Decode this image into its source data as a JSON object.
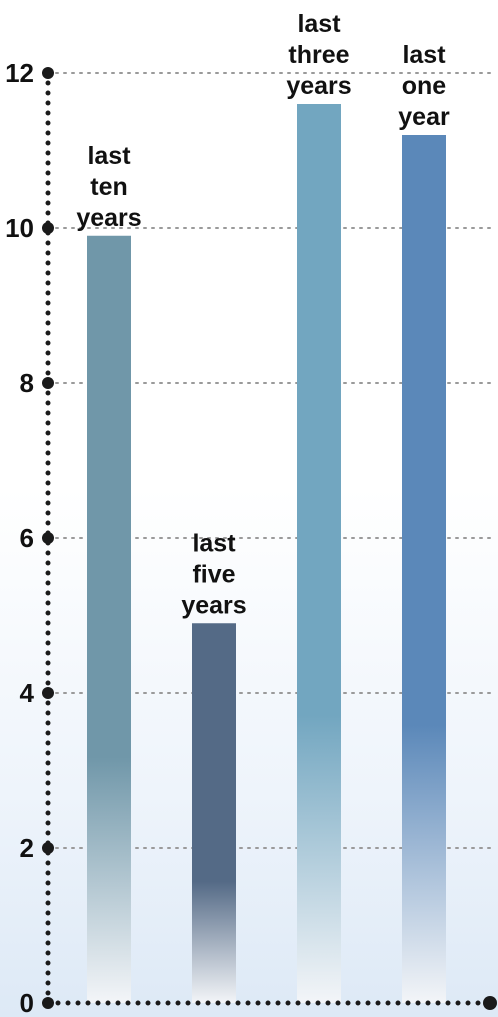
{
  "chart_data": {
    "type": "bar",
    "categories": [
      [
        "last",
        "ten",
        "years"
      ],
      [
        "last",
        "five",
        "years"
      ],
      [
        "last",
        "three",
        "years"
      ],
      [
        "last",
        "one",
        "year"
      ]
    ],
    "values": [
      9.9,
      4.9,
      11.6,
      11.2
    ],
    "colors": [
      "#7097a9",
      "#546a86",
      "#72a6c0",
      "#5b88b9"
    ],
    "ylim": [
      0,
      12
    ],
    "yticks": [
      0,
      2,
      4,
      6,
      8,
      10,
      12
    ],
    "grid": true,
    "title": "",
    "xlabel": "",
    "ylabel": ""
  }
}
